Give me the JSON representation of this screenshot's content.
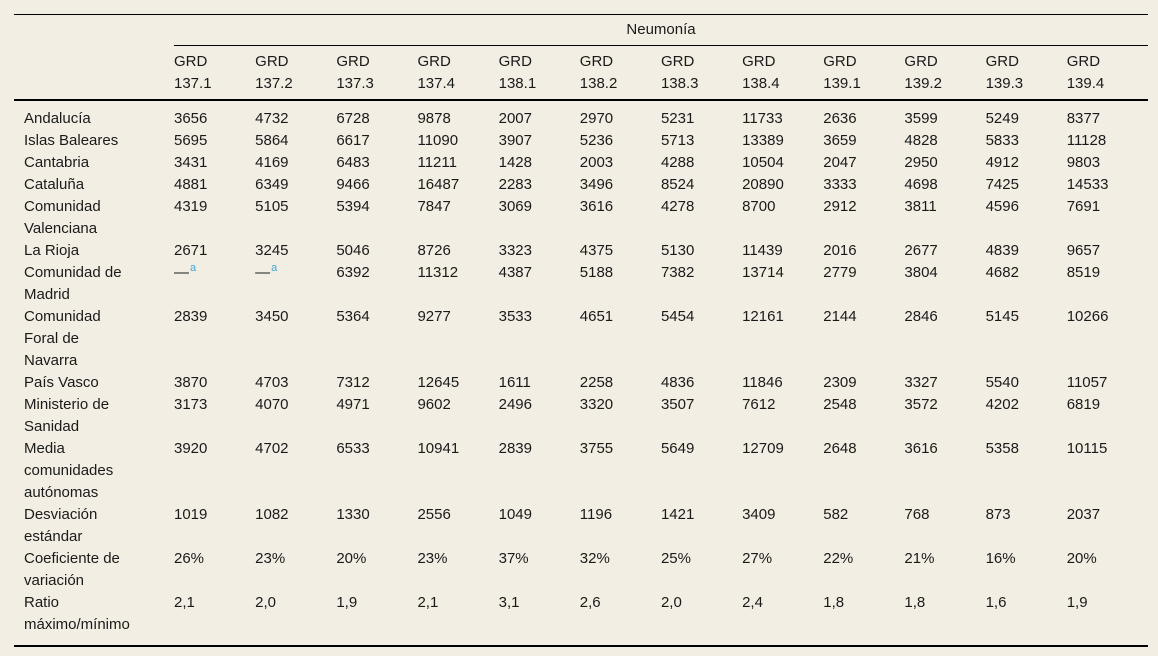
{
  "table": {
    "group_header": "Neumonía",
    "column_label": "GRD",
    "columns": [
      "137.1",
      "137.2",
      "137.3",
      "137.4",
      "138.1",
      "138.2",
      "138.3",
      "138.4",
      "139.1",
      "139.2",
      "139.3",
      "139.4"
    ],
    "rows": [
      {
        "label": "Andalucía",
        "values": [
          "3656",
          "4732",
          "6728",
          "9878",
          "2007",
          "2970",
          "5231",
          "11733",
          "2636",
          "3599",
          "5249",
          "8377"
        ]
      },
      {
        "label": "Islas Baleares",
        "values": [
          "5695",
          "5864",
          "6617",
          "11090",
          "3907",
          "5236",
          "5713",
          "13389",
          "3659",
          "4828",
          "5833",
          "11128"
        ]
      },
      {
        "label": "Cantabria",
        "values": [
          "3431",
          "4169",
          "6483",
          "11211",
          "1428",
          "2003",
          "4288",
          "10504",
          "2047",
          "2950",
          "4912",
          "9803"
        ]
      },
      {
        "label": "Cataluña",
        "values": [
          "4881",
          "6349",
          "9466",
          "16487",
          "2283",
          "3496",
          "8524",
          "20890",
          "3333",
          "4698",
          "7425",
          "14533"
        ]
      },
      {
        "label": "Comunidad Valenciana",
        "values": [
          "4319",
          "5105",
          "5394",
          "7847",
          "3069",
          "3616",
          "4278",
          "8700",
          "2912",
          "3811",
          "4596",
          "7691"
        ]
      },
      {
        "label": "La Rioja",
        "values": [
          "2671",
          "3245",
          "5046",
          "8726",
          "3323",
          "4375",
          "5130",
          "11439",
          "2016",
          "2677",
          "4839",
          "9657"
        ]
      },
      {
        "label": "Comunidad de Madrid",
        "values": [
          {
            "text": "—",
            "footnote": "a"
          },
          {
            "text": "—",
            "footnote": "a"
          },
          "6392",
          "11312",
          "4387",
          "5188",
          "7382",
          "13714",
          "2779",
          "3804",
          "4682",
          "8519"
        ]
      },
      {
        "label": "Comunidad Foral de Navarra",
        "values": [
          "2839",
          "3450",
          "5364",
          "9277",
          "3533",
          "4651",
          "5454",
          "12161",
          "2144",
          "2846",
          "5145",
          "10266"
        ]
      },
      {
        "label": "País Vasco",
        "values": [
          "3870",
          "4703",
          "7312",
          "12645",
          "1611",
          "2258",
          "4836",
          "11846",
          "2309",
          "3327",
          "5540",
          "11057"
        ]
      },
      {
        "label": "Ministerio de Sanidad",
        "values": [
          "3173",
          "4070",
          "4971",
          "9602",
          "2496",
          "3320",
          "3507",
          "7612",
          "2548",
          "3572",
          "4202",
          "6819"
        ]
      },
      {
        "label": "Media comunidades autónomas",
        "values": [
          "3920",
          "4702",
          "6533",
          "10941",
          "2839",
          "3755",
          "5649",
          "12709",
          "2648",
          "3616",
          "5358",
          "10115"
        ]
      },
      {
        "label": "Desviación estándar",
        "values": [
          "1019",
          "1082",
          "1330",
          "2556",
          "1049",
          "1196",
          "1421",
          "3409",
          "582",
          "768",
          "873",
          "2037"
        ]
      },
      {
        "label": "Coeficiente de variación",
        "values": [
          "26%",
          "23%",
          "20%",
          "23%",
          "37%",
          "32%",
          "25%",
          "27%",
          "22%",
          "21%",
          "16%",
          "20%"
        ]
      },
      {
        "label": "Ratio máximo/mínimo",
        "values": [
          "2,1",
          "2,0",
          "1,9",
          "2,1",
          "3,1",
          "2,6",
          "2,0",
          "2,4",
          "1,8",
          "1,8",
          "1,6",
          "1,9"
        ]
      }
    ],
    "colors": {
      "background": "#f3eee3",
      "text": "#1a1a1a",
      "rule": "#000000",
      "footnote_marker": "#45a5d6"
    }
  }
}
